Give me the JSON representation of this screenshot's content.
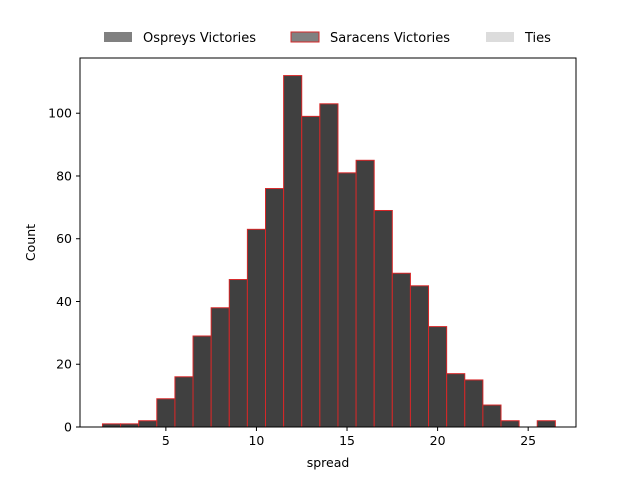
{
  "chart_data": {
    "type": "bar",
    "title": "",
    "xlabel": "spread",
    "ylabel": "Count",
    "xlim": [
      0.26,
      27.64
    ],
    "ylim": [
      0,
      117.6
    ],
    "xticks": [
      5,
      10,
      15,
      20,
      25
    ],
    "yticks": [
      0,
      20,
      40,
      60,
      80,
      100
    ],
    "grid": false,
    "legend_position": "top-center",
    "bin_start": 1.5,
    "bin_width": 1.0,
    "series": [
      {
        "name": "Ospreys Victories",
        "color": "#808080",
        "values": [
          1,
          1,
          2,
          9,
          16,
          29,
          38,
          47,
          63,
          76,
          112,
          99,
          103,
          81,
          85,
          69,
          49,
          45,
          32,
          17,
          15,
          7,
          2,
          0,
          2
        ]
      },
      {
        "name": "Saracens Victories",
        "color": "#808080",
        "edgecolor": "#d62728",
        "values": [
          1,
          1,
          2,
          9,
          16,
          29,
          38,
          47,
          63,
          76,
          112,
          99,
          103,
          81,
          85,
          69,
          49,
          45,
          32,
          17,
          15,
          7,
          2,
          0,
          2
        ]
      },
      {
        "name": "Ties",
        "color": "#dcdcdc",
        "values": []
      }
    ],
    "rendered_bar_fill": "#404040",
    "rendered_bar_edge": "#d62728"
  }
}
